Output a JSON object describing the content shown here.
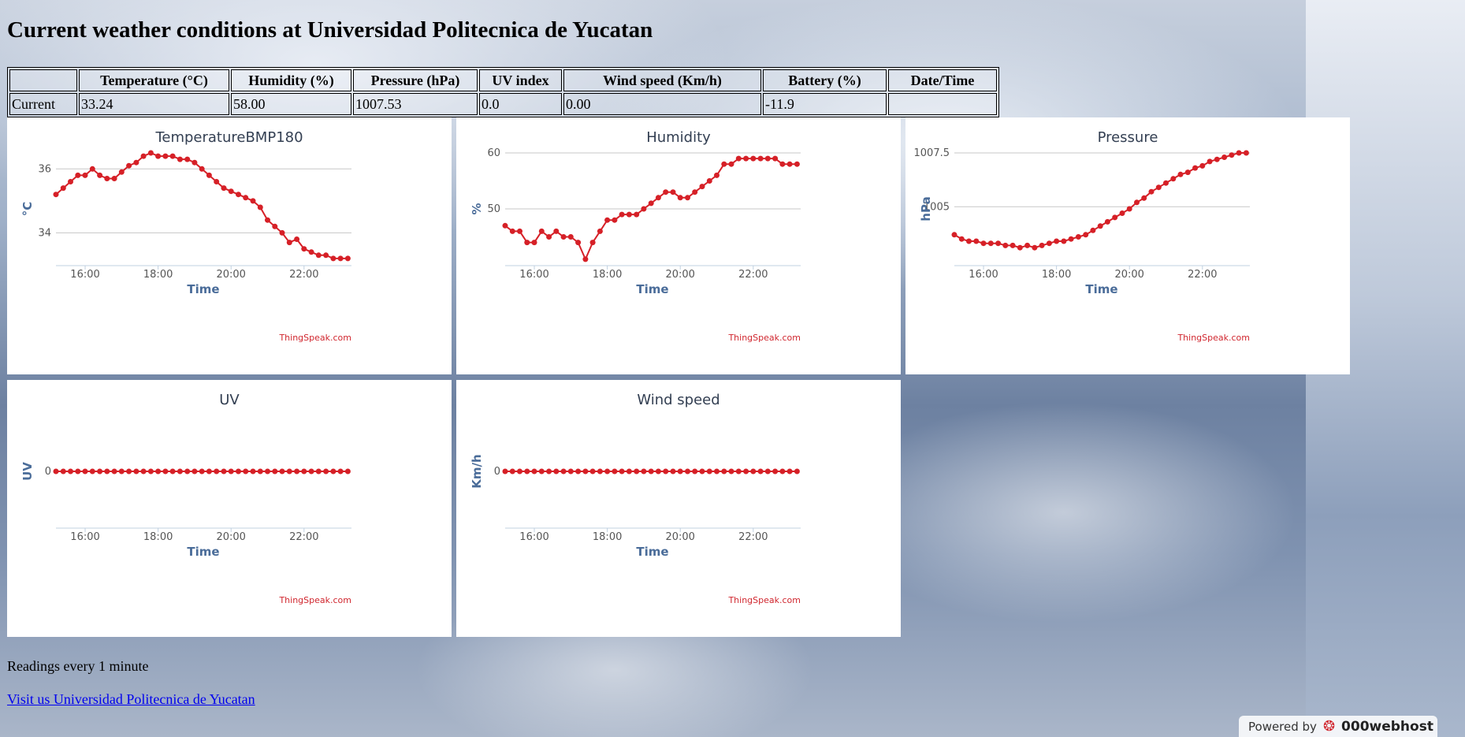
{
  "page": {
    "title": "Current weather conditions at Universidad Politecnica de Yucatan",
    "readings_note": "Readings every 1 minute",
    "link_text": "Visit us Universidad Politecnica de Yucatan",
    "powered_by": "Powered by",
    "host_brand": "000webhost"
  },
  "table": {
    "headers": [
      "",
      "Temperature (°C)",
      "Humidity (%)",
      "Pressure (hPa)",
      "UV index",
      "Wind speed (Km/h)",
      "Battery (%)",
      "Date/Time"
    ],
    "rows": [
      [
        "Current",
        "33.24",
        "58.00",
        "1007.53",
        "0.0",
        "0.00",
        "-11.9",
        ""
      ]
    ]
  },
  "colors": {
    "series": "#d62027",
    "grid": "#c7c7c7",
    "axis_label": "#4a6c99",
    "credit": "#d0262e"
  },
  "chart_data": [
    {
      "type": "line",
      "title": "TemperatureBMP180",
      "xlabel": "Time",
      "ylabel": "°C",
      "credit": "ThingSpeak.com",
      "x_ticks": [
        "16:00",
        "18:00",
        "20:00",
        "22:00"
      ],
      "y_ticks": [
        34,
        36
      ],
      "xlim": [
        15.2,
        23.3
      ],
      "ylim": [
        33.0,
        36.5
      ],
      "x": [
        15.2,
        15.4,
        15.6,
        15.8,
        16.0,
        16.2,
        16.4,
        16.6,
        16.8,
        17.0,
        17.2,
        17.4,
        17.6,
        17.8,
        18.0,
        18.2,
        18.4,
        18.6,
        18.8,
        19.0,
        19.2,
        19.4,
        19.6,
        19.8,
        20.0,
        20.2,
        20.4,
        20.6,
        20.8,
        21.0,
        21.2,
        21.4,
        21.6,
        21.8,
        22.0,
        22.2,
        22.4,
        22.6,
        22.8,
        23.0,
        23.2
      ],
      "values": [
        35.2,
        35.4,
        35.6,
        35.8,
        35.8,
        36.0,
        35.8,
        35.7,
        35.7,
        35.9,
        36.1,
        36.2,
        36.4,
        36.5,
        36.4,
        36.4,
        36.4,
        36.3,
        36.3,
        36.2,
        36.0,
        35.8,
        35.6,
        35.4,
        35.3,
        35.2,
        35.1,
        35.0,
        34.8,
        34.4,
        34.2,
        34.0,
        33.7,
        33.8,
        33.5,
        33.4,
        33.3,
        33.3,
        33.2,
        33.2,
        33.2
      ],
      "grid": true
    },
    {
      "type": "line",
      "title": "Humidity",
      "xlabel": "Time",
      "ylabel": "%",
      "credit": "ThingSpeak.com",
      "x_ticks": [
        "16:00",
        "18:00",
        "20:00",
        "22:00"
      ],
      "y_ticks": [
        50,
        60
      ],
      "xlim": [
        15.2,
        23.3
      ],
      "ylim": [
        40,
        60
      ],
      "x": [
        15.2,
        15.4,
        15.6,
        15.8,
        16.0,
        16.2,
        16.4,
        16.6,
        16.8,
        17.0,
        17.2,
        17.4,
        17.6,
        17.8,
        18.0,
        18.2,
        18.4,
        18.6,
        18.8,
        19.0,
        19.2,
        19.4,
        19.6,
        19.8,
        20.0,
        20.2,
        20.4,
        20.6,
        20.8,
        21.0,
        21.2,
        21.4,
        21.6,
        21.8,
        22.0,
        22.2,
        22.4,
        22.6,
        22.8,
        23.0,
        23.2
      ],
      "values": [
        47,
        46,
        46,
        44,
        44,
        46,
        45,
        46,
        45,
        45,
        44,
        41,
        44,
        46,
        48,
        48,
        49,
        49,
        49,
        50,
        51,
        52,
        53,
        53,
        52,
        52,
        53,
        54,
        55,
        56,
        58,
        58,
        59,
        59,
        59,
        59,
        59,
        59,
        58,
        58,
        58
      ],
      "grid": true
    },
    {
      "type": "line",
      "title": "Pressure",
      "xlabel": "Time",
      "ylabel": "hPa",
      "credit": "ThingSpeak.com",
      "x_ticks": [
        "16:00",
        "18:00",
        "20:00",
        "22:00"
      ],
      "y_ticks": [
        1005,
        1007.5
      ],
      "xlim": [
        15.2,
        23.3
      ],
      "ylim": [
        1002.3,
        1007.5
      ],
      "x": [
        15.2,
        15.4,
        15.6,
        15.8,
        16.0,
        16.2,
        16.4,
        16.6,
        16.8,
        17.0,
        17.2,
        17.4,
        17.6,
        17.8,
        18.0,
        18.2,
        18.4,
        18.6,
        18.8,
        19.0,
        19.2,
        19.4,
        19.6,
        19.8,
        20.0,
        20.2,
        20.4,
        20.6,
        20.8,
        21.0,
        21.2,
        21.4,
        21.6,
        21.8,
        22.0,
        22.2,
        22.4,
        22.6,
        22.8,
        23.0,
        23.2
      ],
      "values": [
        1003.7,
        1003.5,
        1003.4,
        1003.4,
        1003.3,
        1003.3,
        1003.3,
        1003.2,
        1003.2,
        1003.1,
        1003.2,
        1003.1,
        1003.2,
        1003.3,
        1003.4,
        1003.4,
        1003.5,
        1003.6,
        1003.7,
        1003.9,
        1004.1,
        1004.3,
        1004.5,
        1004.7,
        1004.9,
        1005.2,
        1005.4,
        1005.7,
        1005.9,
        1006.1,
        1006.3,
        1006.5,
        1006.6,
        1006.8,
        1006.9,
        1007.1,
        1007.2,
        1007.3,
        1007.4,
        1007.5,
        1007.5
      ],
      "grid": true
    },
    {
      "type": "line",
      "title": "UV",
      "xlabel": "Time",
      "ylabel": "UV",
      "credit": "ThingSpeak.com",
      "x_ticks": [
        "16:00",
        "18:00",
        "20:00",
        "22:00"
      ],
      "y_ticks": [
        0
      ],
      "xlim": [
        15.2,
        23.3
      ],
      "ylim": [
        -1,
        1
      ],
      "x": [
        15.2,
        15.4,
        15.6,
        15.8,
        16.0,
        16.2,
        16.4,
        16.6,
        16.8,
        17.0,
        17.2,
        17.4,
        17.6,
        17.8,
        18.0,
        18.2,
        18.4,
        18.6,
        18.8,
        19.0,
        19.2,
        19.4,
        19.6,
        19.8,
        20.0,
        20.2,
        20.4,
        20.6,
        20.8,
        21.0,
        21.2,
        21.4,
        21.6,
        21.8,
        22.0,
        22.2,
        22.4,
        22.6,
        22.8,
        23.0,
        23.2
      ],
      "values": [
        0,
        0,
        0,
        0,
        0,
        0,
        0,
        0,
        0,
        0,
        0,
        0,
        0,
        0,
        0,
        0,
        0,
        0,
        0,
        0,
        0,
        0,
        0,
        0,
        0,
        0,
        0,
        0,
        0,
        0,
        0,
        0,
        0,
        0,
        0,
        0,
        0,
        0,
        0,
        0,
        0
      ],
      "grid": false
    },
    {
      "type": "line",
      "title": "Wind speed",
      "xlabel": "Time",
      "ylabel": "Km/h",
      "credit": "ThingSpeak.com",
      "x_ticks": [
        "16:00",
        "18:00",
        "20:00",
        "22:00"
      ],
      "y_ticks": [
        0
      ],
      "xlim": [
        15.2,
        23.3
      ],
      "ylim": [
        -1,
        1
      ],
      "x": [
        15.2,
        15.4,
        15.6,
        15.8,
        16.0,
        16.2,
        16.4,
        16.6,
        16.8,
        17.0,
        17.2,
        17.4,
        17.6,
        17.8,
        18.0,
        18.2,
        18.4,
        18.6,
        18.8,
        19.0,
        19.2,
        19.4,
        19.6,
        19.8,
        20.0,
        20.2,
        20.4,
        20.6,
        20.8,
        21.0,
        21.2,
        21.4,
        21.6,
        21.8,
        22.0,
        22.2,
        22.4,
        22.6,
        22.8,
        23.0,
        23.2
      ],
      "values": [
        0,
        0,
        0,
        0,
        0,
        0,
        0,
        0,
        0,
        0,
        0,
        0,
        0,
        0,
        0,
        0,
        0,
        0,
        0,
        0,
        0,
        0,
        0,
        0,
        0,
        0,
        0,
        0,
        0,
        0,
        0,
        0,
        0,
        0,
        0,
        0,
        0,
        0,
        0,
        0,
        0
      ],
      "grid": false
    }
  ]
}
